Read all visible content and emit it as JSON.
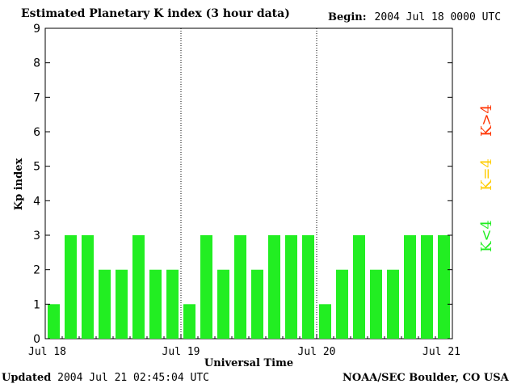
{
  "header": {
    "title": "Estimated Planetary K index (3 hour data)",
    "begin_label": "Begin:",
    "begin_value": "2004 Jul 18 0000 UTC"
  },
  "footer": {
    "updated_label": "Updated",
    "updated_value": "2004 Jul 21 02:45:04 UTC",
    "credit": "NOAA/SEC Boulder, CO USA"
  },
  "legend": [
    {
      "label": "K>4",
      "color": "#ff3300"
    },
    {
      "label": "K=4",
      "color": "#ffcc00"
    },
    {
      "label": "K<4",
      "color": "#22ee22"
    }
  ],
  "chart_data": {
    "type": "bar",
    "title": "Estimated Planetary K index (3 hour data)",
    "xlabel": "Universal Time",
    "ylabel": "Kp index",
    "ylim": [
      0,
      9
    ],
    "yticks": [
      "0",
      "1",
      "2",
      "3",
      "4",
      "5",
      "6",
      "7",
      "8",
      "9"
    ],
    "xticks": [
      "Jul 18",
      "Jul 19",
      "Jul 20",
      "Jul 21"
    ],
    "bars_per_day": 8,
    "days": 3,
    "values": [
      1,
      3,
      3,
      2,
      2,
      3,
      2,
      2,
      1,
      3,
      2,
      3,
      2,
      3,
      3,
      3,
      1,
      2,
      3,
      2,
      2,
      3,
      3,
      3
    ],
    "day_separators": "dotted",
    "grid": false,
    "bar_color": "#22ee22"
  }
}
